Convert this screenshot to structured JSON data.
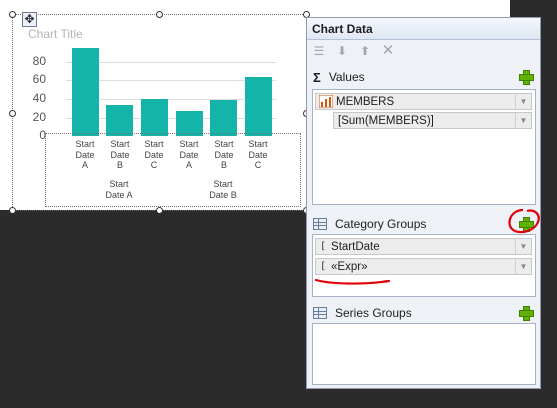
{
  "chart": {
    "title": "Chart Title",
    "y_ticks": [
      "80",
      "60",
      "40",
      "20",
      "0"
    ]
  },
  "chart_data": {
    "type": "bar",
    "title": "Chart Title",
    "categories": [
      "Start Date A",
      "Start Date B",
      "Start Date C",
      "Start Date A",
      "Start Date B",
      "Start Date C"
    ],
    "values": [
      95,
      34,
      40,
      27,
      39,
      64
    ],
    "groups": [
      "Start Date A",
      "Start Date B"
    ],
    "ylim": [
      0,
      100
    ],
    "grid": true,
    "colors": [
      "#14b4a8"
    ]
  },
  "pane": {
    "title": "Chart Data",
    "values": {
      "label": "Values",
      "series_field": "MEMBERS",
      "expression": "[Sum(MEMBERS)]"
    },
    "category_groups": {
      "label": "Category Groups",
      "items": [
        "StartDate",
        "«Expr»"
      ]
    },
    "series_groups": {
      "label": "Series Groups"
    }
  },
  "colors": {
    "bar": "#14b4a8",
    "annotation": "#e0000a",
    "add_green": "#62b000"
  }
}
